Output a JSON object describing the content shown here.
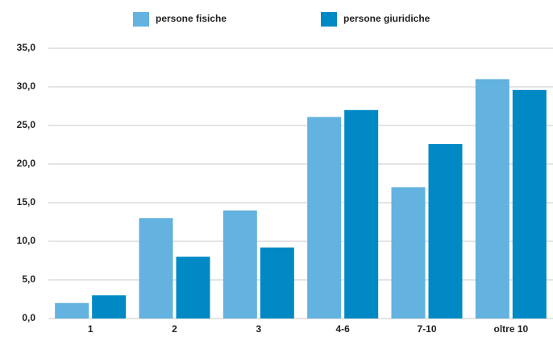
{
  "chart_data": {
    "type": "bar",
    "categories": [
      "1",
      "2",
      "3",
      "4-6",
      "7-10",
      "oltre 10"
    ],
    "series": [
      {
        "name": "persone fisiche",
        "color": "#63b2df",
        "values": [
          2.0,
          13.0,
          14.0,
          26.1,
          17.0,
          31.0
        ]
      },
      {
        "name": "persone giuridiche",
        "color": "#0089c5",
        "values": [
          3.0,
          8.0,
          9.2,
          27.0,
          22.6,
          29.6
        ]
      }
    ],
    "ylim": [
      0,
      35
    ],
    "yticks": [
      {
        "value": 0,
        "label": "0,0"
      },
      {
        "value": 5,
        "label": "5,0"
      },
      {
        "value": 10,
        "label": "10,0"
      },
      {
        "value": 15,
        "label": "15,0"
      },
      {
        "value": 20,
        "label": "20,0"
      },
      {
        "value": 25,
        "label": "25,0"
      },
      {
        "value": 30,
        "label": "30,0"
      },
      {
        "value": 35,
        "label": "35,0"
      }
    ],
    "grid": true,
    "legend": "top"
  }
}
